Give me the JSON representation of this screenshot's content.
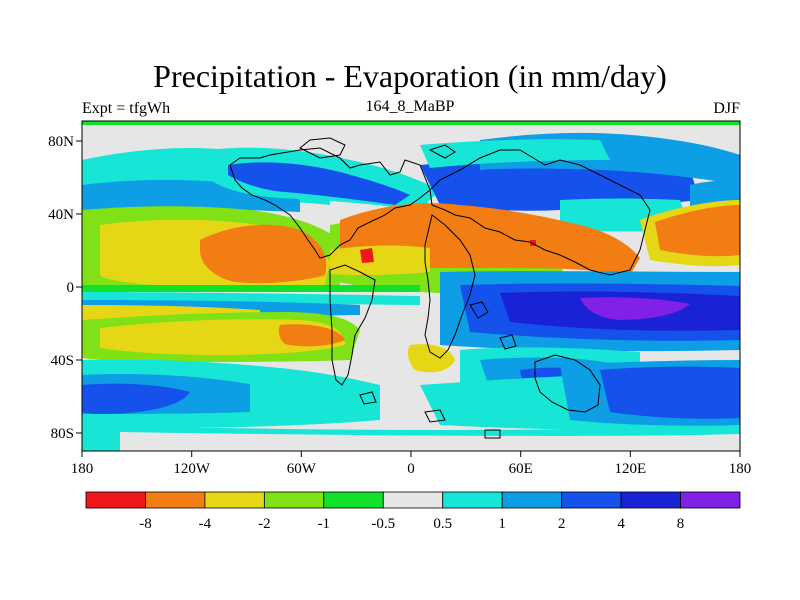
{
  "title": "Precipitation - Evaporation (in mm/day)",
  "subtitle_left": "Expt = tfgWh",
  "subtitle_center": "164_8_MaBP",
  "subtitle_right": "DJF",
  "map": {
    "lon_ticks": [
      "180",
      "120W",
      "60W",
      "0",
      "60E",
      "120E",
      "180"
    ],
    "lat_ticks": [
      "80N",
      "40N",
      "0",
      "40S",
      "80S"
    ]
  },
  "colorbar": {
    "colors": [
      "#f0171a",
      "#f27d12",
      "#e5d716",
      "#7fe116",
      "#12e12c",
      "#e6e6e6",
      "#17e5d5",
      "#0d9ee6",
      "#1452eb",
      "#1a22d6",
      "#8120e6"
    ],
    "labels": [
      "-8",
      "-4",
      "-2",
      "-1",
      "-0.5",
      "0.5",
      "1",
      "2",
      "4",
      "8"
    ]
  },
  "palette": {
    "neutral": "#e6e6e6",
    "cyan": "#17e5d5",
    "lightblue": "#0d9ee6",
    "blue": "#1452eb",
    "darkblue": "#1a22d6",
    "violet": "#8120e6",
    "green": "#12e12c",
    "yellowgreen": "#7fe116",
    "yellow": "#e5d716",
    "orange": "#f27d12",
    "red": "#f0171a"
  }
}
